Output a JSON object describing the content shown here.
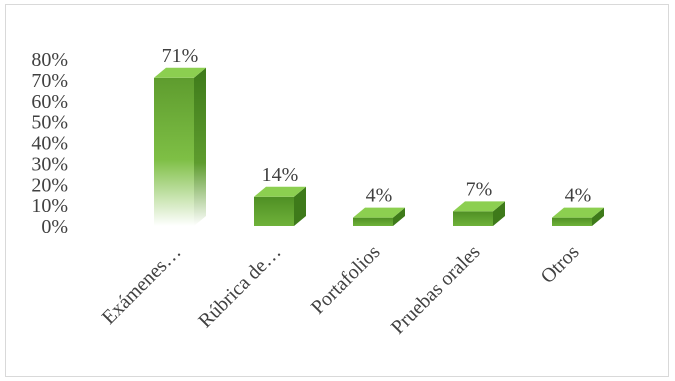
{
  "chart_data": {
    "type": "bar",
    "style": "3d",
    "categories": [
      "Exámenes…",
      "Rúbrica de…",
      "Portafolios",
      "Pruebas orales",
      "Otros"
    ],
    "values": [
      71,
      14,
      4,
      7,
      4
    ],
    "data_labels": [
      "71%",
      "14%",
      "4%",
      "7%",
      "4%"
    ],
    "y_ticks": [
      "0%",
      "10%",
      "20%",
      "30%",
      "40%",
      "50%",
      "60%",
      "70%",
      "80%"
    ],
    "ylim": [
      0,
      80
    ],
    "grid": false,
    "legend": "none",
    "colors": {
      "front": "#5e9c2e",
      "front_light": "#7ebf45",
      "top": "#8ccf50",
      "side": "#3e7a1a",
      "text": "#404040",
      "border": "#d9d9d9"
    }
  }
}
